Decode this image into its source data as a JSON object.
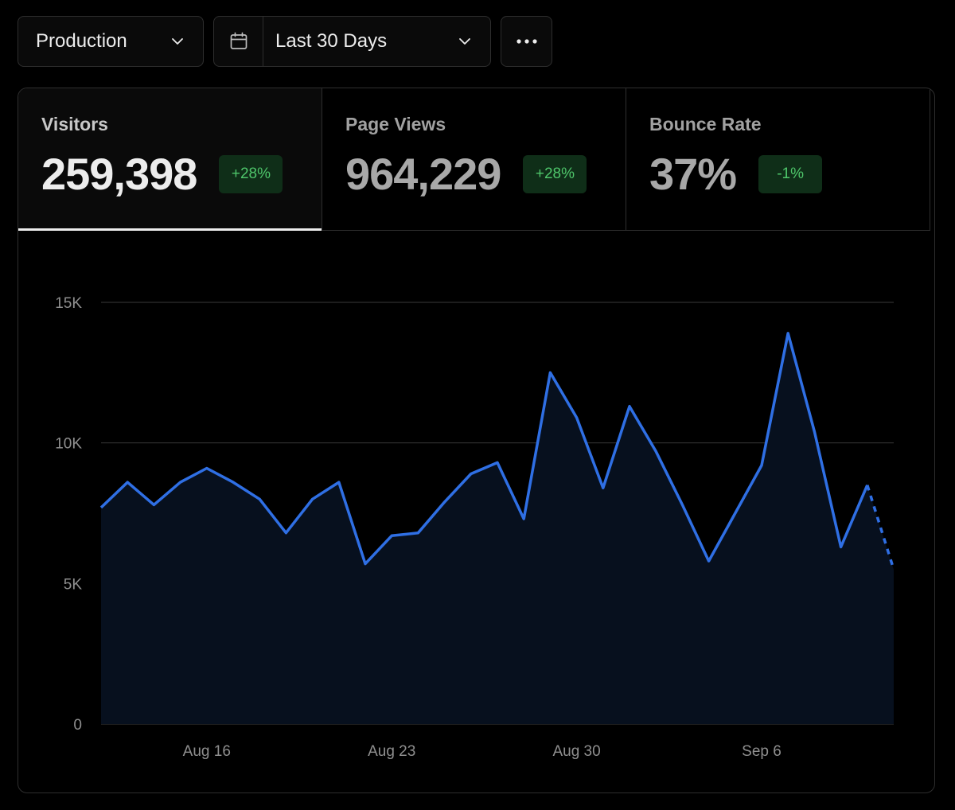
{
  "toolbar": {
    "environment": {
      "label": "Production",
      "icon": "chevron-down-icon"
    },
    "date_range": {
      "icon": "calendar-icon",
      "label": "Last 30 Days",
      "chevron": "chevron-down-icon"
    },
    "more": {
      "icon": "more-horizontal-icon"
    }
  },
  "tabs": [
    {
      "label": "Visitors",
      "value": "259,398",
      "change": "+28%",
      "active": true
    },
    {
      "label": "Page Views",
      "value": "964,229",
      "change": "+28%",
      "active": false
    },
    {
      "label": "Bounce Rate",
      "value": "37%",
      "change": "-1%",
      "active": false
    }
  ],
  "colors": {
    "line": "#2f6fe4",
    "area": "#07101e",
    "grid": "#3a3a3a",
    "badge_bg": "#0f2e18",
    "badge_text": "#4ec56a"
  },
  "chart_data": {
    "type": "area",
    "x": [
      "Aug 12",
      "Aug 13",
      "Aug 14",
      "Aug 15",
      "Aug 16",
      "Aug 17",
      "Aug 18",
      "Aug 19",
      "Aug 20",
      "Aug 21",
      "Aug 22",
      "Aug 23",
      "Aug 24",
      "Aug 25",
      "Aug 26",
      "Aug 27",
      "Aug 28",
      "Aug 29",
      "Aug 30",
      "Aug 31",
      "Sep 1",
      "Sep 2",
      "Sep 3",
      "Sep 4",
      "Sep 5",
      "Sep 6",
      "Sep 7",
      "Sep 8",
      "Sep 9",
      "Sep 10",
      "Sep 11"
    ],
    "series": [
      {
        "values": [
          7700,
          8600,
          7800,
          8600,
          9100,
          8600,
          8000,
          6800,
          8000,
          8600,
          5700,
          6700,
          6800,
          7900,
          8900,
          9300,
          7300,
          12500,
          10900,
          8400,
          11300,
          9700,
          7800,
          5800,
          7500,
          9200,
          13900,
          10400,
          6300,
          8500,
          5500
        ],
        "projected_last": true
      }
    ],
    "x_ticks": [
      "Aug 16",
      "Aug 23",
      "Aug 30",
      "Sep 6"
    ],
    "y_ticks": [
      "15K",
      "10K",
      "5K",
      "0"
    ],
    "ylim": [
      0,
      15000
    ],
    "grid": true
  }
}
